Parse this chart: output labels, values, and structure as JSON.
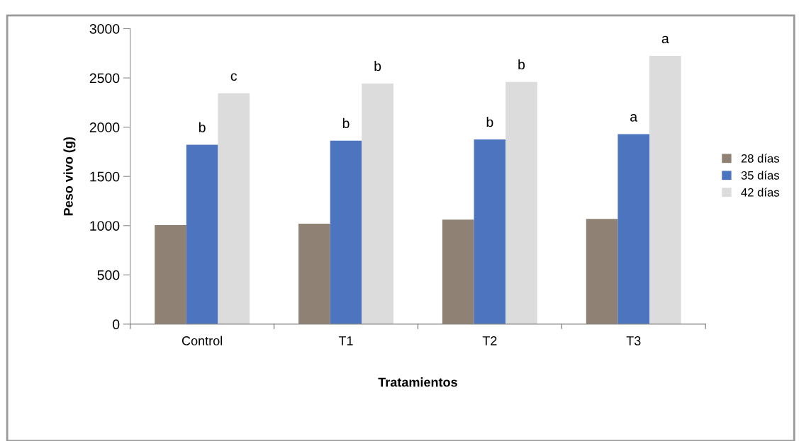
{
  "chart_data": {
    "type": "bar",
    "xlabel": "Tratamientos",
    "ylabel": "Peso vivo (g)",
    "categories": [
      "Control",
      "T1",
      "T2",
      "T3"
    ],
    "series": [
      {
        "name": "28 días",
        "color": "#8f8274",
        "values": [
          1005,
          1020,
          1061,
          1068
        ]
      },
      {
        "name": "35 días",
        "color": "#4d74be",
        "values": [
          1821,
          1862,
          1875,
          1929
        ],
        "value_labels": [
          "b",
          "b",
          "b",
          "a"
        ]
      },
      {
        "name": "42 días",
        "color": "#dcdcdc",
        "values": [
          2344,
          2443,
          2459,
          2723
        ],
        "value_labels": [
          "c",
          "b",
          "b",
          "a"
        ]
      }
    ],
    "ylim": [
      0,
      3000
    ],
    "yticks": [
      0,
      500,
      1000,
      1500,
      2000,
      2500,
      3000
    ],
    "grid": false,
    "legend": "right"
  }
}
